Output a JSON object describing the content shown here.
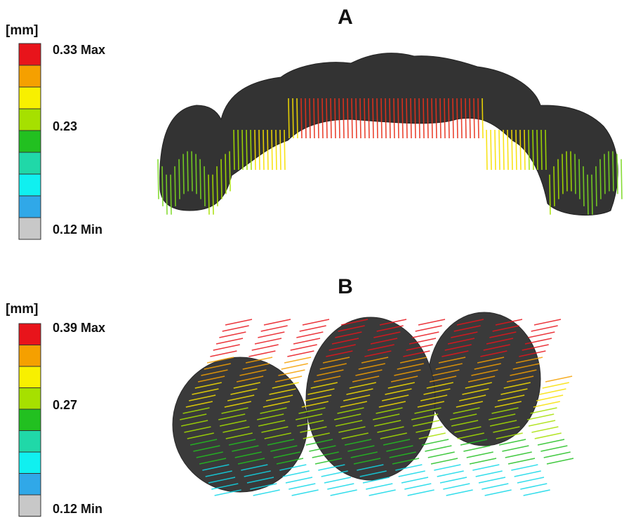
{
  "panels": [
    {
      "title": "A",
      "unit": "[mm]",
      "scale": [
        "0.33 Max",
        "0.23",
        "0.12 Min"
      ]
    },
    {
      "title": "B",
      "unit": "[mm]",
      "scale": [
        "0.39 Max",
        "0.27",
        "0.12 Min"
      ]
    }
  ]
}
